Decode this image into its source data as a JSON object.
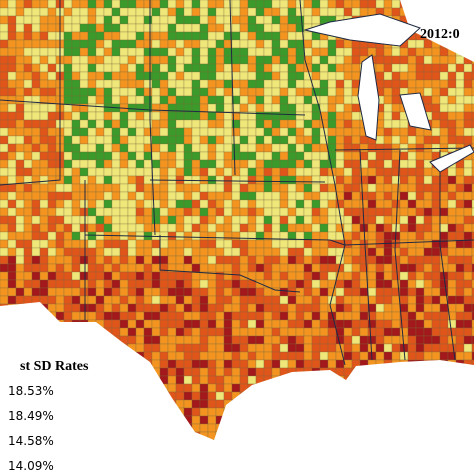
{
  "title": "2012:0",
  "legend": {
    "title": "st SD Rates",
    "items": [
      "18.53%",
      "18.49%",
      "14.58%",
      "14.09%"
    ]
  }
}
